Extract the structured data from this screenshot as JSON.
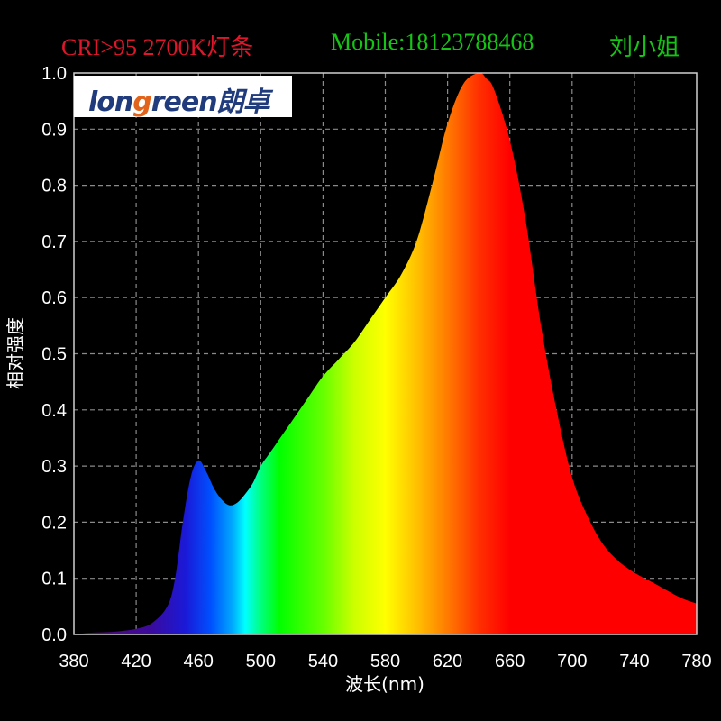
{
  "header": {
    "product": "CRI>95 2700K灯条",
    "mobile": "Mobile:18123788468",
    "contact": "刘小姐"
  },
  "logo": {
    "brand_lead": "lon",
    "brand_accent": "g",
    "brand_tail": "reen",
    "brand_cn": "朗卓"
  },
  "colors": {
    "background": "#000000",
    "header_product": "#e0162b",
    "header_contact": "#16c416",
    "grid": "#8a8a8a",
    "axis_text": "#ffffff",
    "logo_text": "#203c7c",
    "logo_accent": "#e2641c"
  },
  "chart_data": {
    "type": "area",
    "title": "",
    "xlabel": "波长(nm)",
    "ylabel": "相对强度",
    "xlim": [
      380,
      780
    ],
    "ylim": [
      0,
      1.0
    ],
    "grid": true,
    "xticks": [
      "380",
      "420",
      "460",
      "500",
      "540",
      "580",
      "620",
      "660",
      "700",
      "740",
      "780"
    ],
    "yticks": [
      "0.0",
      "0.1",
      "0.2",
      "0.3",
      "0.4",
      "0.5",
      "0.6",
      "0.7",
      "0.8",
      "0.9",
      "1.0"
    ],
    "fill": "visible-spectrum gradient by wavelength",
    "series": [
      {
        "x": [
          380,
          390,
          400,
          410,
          420,
          430,
          440,
          445,
          450,
          455,
          460,
          465,
          470,
          475,
          480,
          485,
          490,
          495,
          500,
          505,
          510,
          520,
          530,
          540,
          550,
          560,
          570,
          580,
          590,
          600,
          610,
          620,
          630,
          640,
          645,
          650,
          660,
          670,
          680,
          690,
          700,
          710,
          720,
          730,
          740,
          750,
          760,
          770,
          780
        ],
        "y": [
          0.0,
          0.003,
          0.004,
          0.006,
          0.01,
          0.02,
          0.05,
          0.1,
          0.2,
          0.28,
          0.31,
          0.29,
          0.26,
          0.24,
          0.23,
          0.235,
          0.25,
          0.27,
          0.3,
          0.32,
          0.34,
          0.38,
          0.42,
          0.46,
          0.49,
          0.52,
          0.56,
          0.6,
          0.64,
          0.7,
          0.8,
          0.91,
          0.98,
          1.0,
          0.99,
          0.97,
          0.88,
          0.74,
          0.55,
          0.4,
          0.28,
          0.21,
          0.16,
          0.13,
          0.11,
          0.095,
          0.08,
          0.065,
          0.055
        ]
      }
    ]
  }
}
